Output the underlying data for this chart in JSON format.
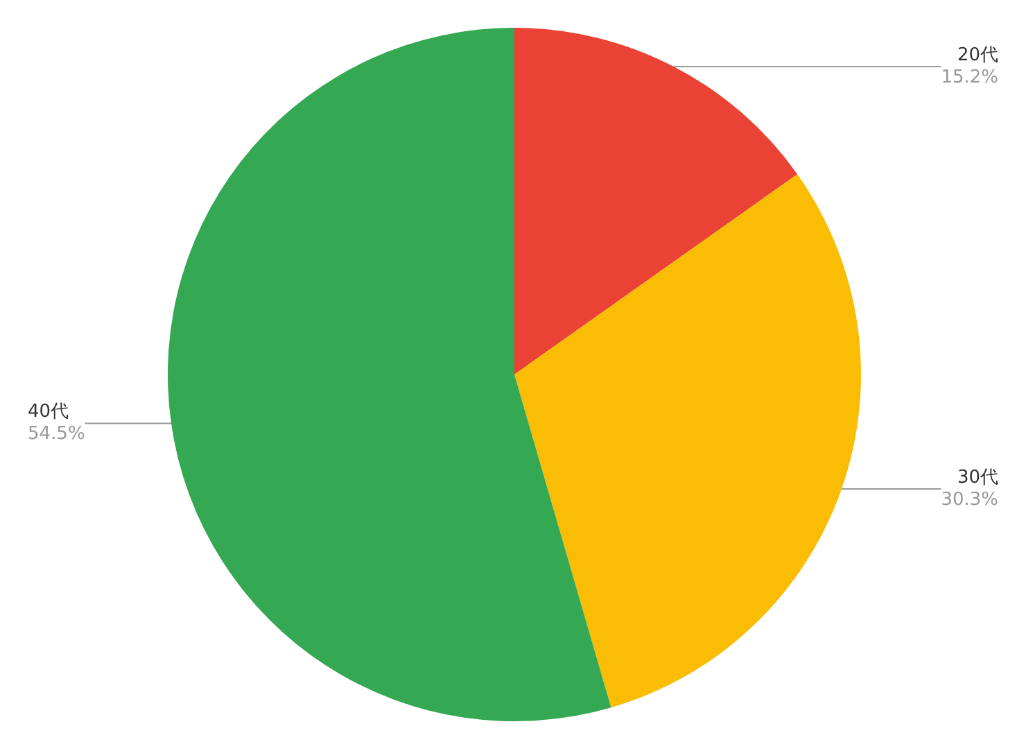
{
  "chart_data": {
    "type": "pie",
    "categories": [
      "20代",
      "30代",
      "40代"
    ],
    "values": [
      15.2,
      30.3,
      54.5
    ],
    "colors": [
      "#ea4335",
      "#fbbc04",
      "#34a853"
    ],
    "value_labels": [
      "15.2%",
      "30.3%",
      "54.5%"
    ],
    "legend": false
  }
}
